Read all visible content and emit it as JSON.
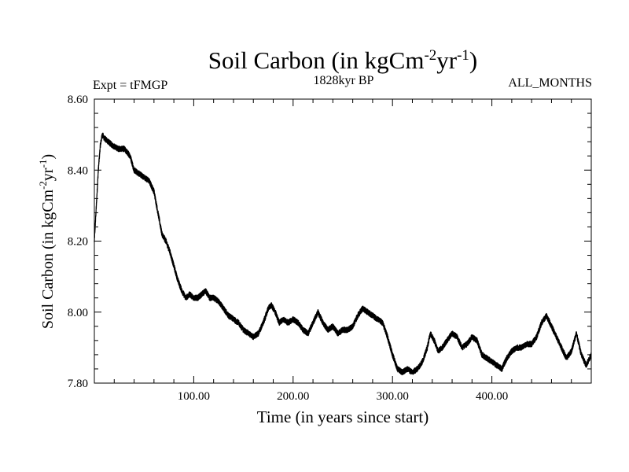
{
  "header": {
    "title_main": "Soil Carbon (in kgCm",
    "title_sup1": "-2",
    "title_mid": "yr",
    "title_sup2": "-1",
    "title_end": ")",
    "left_label": "Expt = tFMGP",
    "center_label": "1828kyr BP",
    "right_label": "ALL_MONTHS"
  },
  "axes": {
    "xlabel": "Time (in years since start)",
    "ylabel_main": "Soil Carbon (in kgCm",
    "ylabel_sup1": "-2",
    "ylabel_mid": "yr",
    "ylabel_sup2": "-1",
    "ylabel_end": ")"
  },
  "chart_data": {
    "type": "line",
    "title": "Soil Carbon (in kgCm-2yr-1)",
    "subtitle": "1828kyr BP",
    "xlabel": "Time (in years since start)",
    "ylabel": "Soil Carbon (in kgCm-2yr-1)",
    "xlim": [
      0,
      500
    ],
    "ylim": [
      7.8,
      8.6
    ],
    "x_major_ticks": [
      100,
      200,
      300,
      400
    ],
    "x_tick_labels": [
      "100.00",
      "200.00",
      "300.00",
      "400.00"
    ],
    "y_major_ticks": [
      7.8,
      8.0,
      8.2,
      8.4,
      8.6
    ],
    "y_tick_labels": [
      "7.80",
      "8.00",
      "8.20",
      "8.40",
      "8.60"
    ],
    "x_minor_step": 20,
    "y_minor_step": 0.04,
    "grid": false,
    "line_color": "#000000",
    "band_half_width": 0.008,
    "series": [
      {
        "name": "Soil Carbon",
        "x": [
          0,
          2,
          4,
          6,
          8,
          10,
          14,
          18,
          24,
          30,
          36,
          40,
          45,
          50,
          55,
          60,
          64,
          68,
          72,
          76,
          80,
          84,
          88,
          92,
          96,
          100,
          104,
          108,
          112,
          116,
          120,
          125,
          130,
          135,
          140,
          145,
          150,
          155,
          160,
          165,
          170,
          175,
          178,
          182,
          186,
          190,
          195,
          200,
          205,
          210,
          215,
          220,
          225,
          230,
          235,
          240,
          245,
          250,
          255,
          260,
          265,
          270,
          275,
          280,
          285,
          290,
          295,
          300,
          305,
          310,
          315,
          320,
          325,
          330,
          335,
          338,
          342,
          346,
          350,
          355,
          360,
          365,
          370,
          375,
          380,
          385,
          390,
          395,
          400,
          405,
          410,
          415,
          420,
          425,
          430,
          435,
          440,
          445,
          450,
          455,
          460,
          465,
          470,
          475,
          480,
          485,
          490,
          495,
          500
        ],
        "y": [
          8.2,
          8.3,
          8.4,
          8.47,
          8.5,
          8.49,
          8.48,
          8.47,
          8.46,
          8.46,
          8.44,
          8.4,
          8.39,
          8.38,
          8.37,
          8.34,
          8.28,
          8.22,
          8.2,
          8.17,
          8.13,
          8.09,
          8.06,
          8.04,
          8.05,
          8.04,
          8.04,
          8.05,
          8.06,
          8.04,
          8.04,
          8.03,
          8.01,
          7.99,
          7.98,
          7.97,
          7.95,
          7.94,
          7.93,
          7.94,
          7.97,
          8.01,
          8.02,
          8.0,
          7.97,
          7.98,
          7.97,
          7.98,
          7.97,
          7.95,
          7.94,
          7.97,
          8.0,
          7.97,
          7.95,
          7.96,
          7.94,
          7.95,
          7.95,
          7.96,
          7.99,
          8.01,
          8.0,
          7.99,
          7.98,
          7.97,
          7.93,
          7.88,
          7.84,
          7.83,
          7.84,
          7.83,
          7.84,
          7.86,
          7.9,
          7.94,
          7.92,
          7.89,
          7.9,
          7.92,
          7.94,
          7.93,
          7.9,
          7.91,
          7.93,
          7.92,
          7.88,
          7.87,
          7.86,
          7.85,
          7.84,
          7.87,
          7.89,
          7.9,
          7.9,
          7.91,
          7.91,
          7.93,
          7.97,
          7.99,
          7.96,
          7.93,
          7.9,
          7.87,
          7.89,
          7.94,
          7.88,
          7.85,
          7.88
        ]
      }
    ]
  }
}
